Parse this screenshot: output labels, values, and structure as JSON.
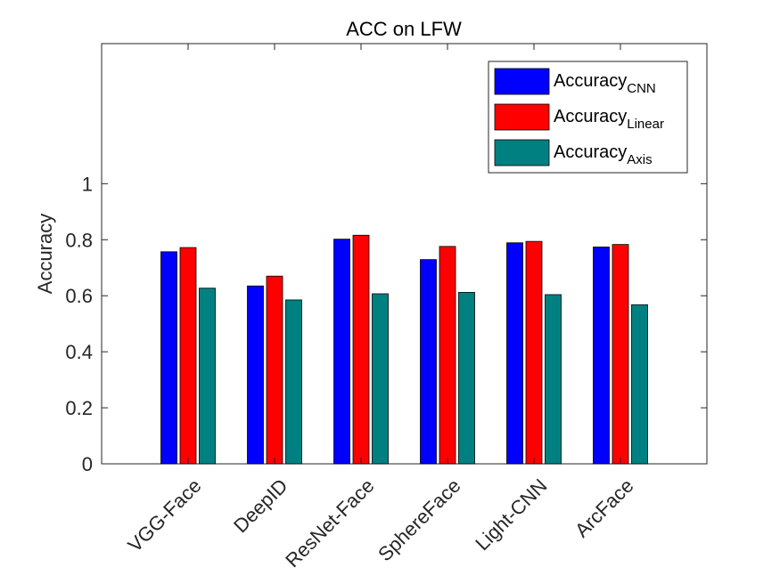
{
  "chart_data": {
    "type": "bar",
    "title": "ACC on LFW",
    "xlabel": "",
    "ylabel": "Accuracy",
    "ylim": [
      0,
      1.5
    ],
    "yticks": [
      "0",
      "0.2",
      "0.4",
      "0.6",
      "0.8",
      "1"
    ],
    "ytick_values": [
      0,
      0.2,
      0.4,
      0.6,
      0.8,
      1
    ],
    "categories": [
      "VGG-Face",
      "DeepID",
      "ResNet-Face",
      "SphereFace",
      "Light-CNN",
      "ArcFace"
    ],
    "series": [
      {
        "name": "Accuracy",
        "subscript": "CNN",
        "color": "#0000ff",
        "values": [
          0.757,
          0.635,
          0.802,
          0.729,
          0.789,
          0.774
        ]
      },
      {
        "name": "Accuracy",
        "subscript": "Linear",
        "color": "#ff0000",
        "values": [
          0.772,
          0.67,
          0.816,
          0.776,
          0.794,
          0.783
        ]
      },
      {
        "name": "Accuracy",
        "subscript": "Axis",
        "color": "#008080",
        "values": [
          0.627,
          0.585,
          0.607,
          0.612,
          0.604,
          0.568
        ]
      }
    ],
    "legend_position": "top-right",
    "grid": false
  }
}
